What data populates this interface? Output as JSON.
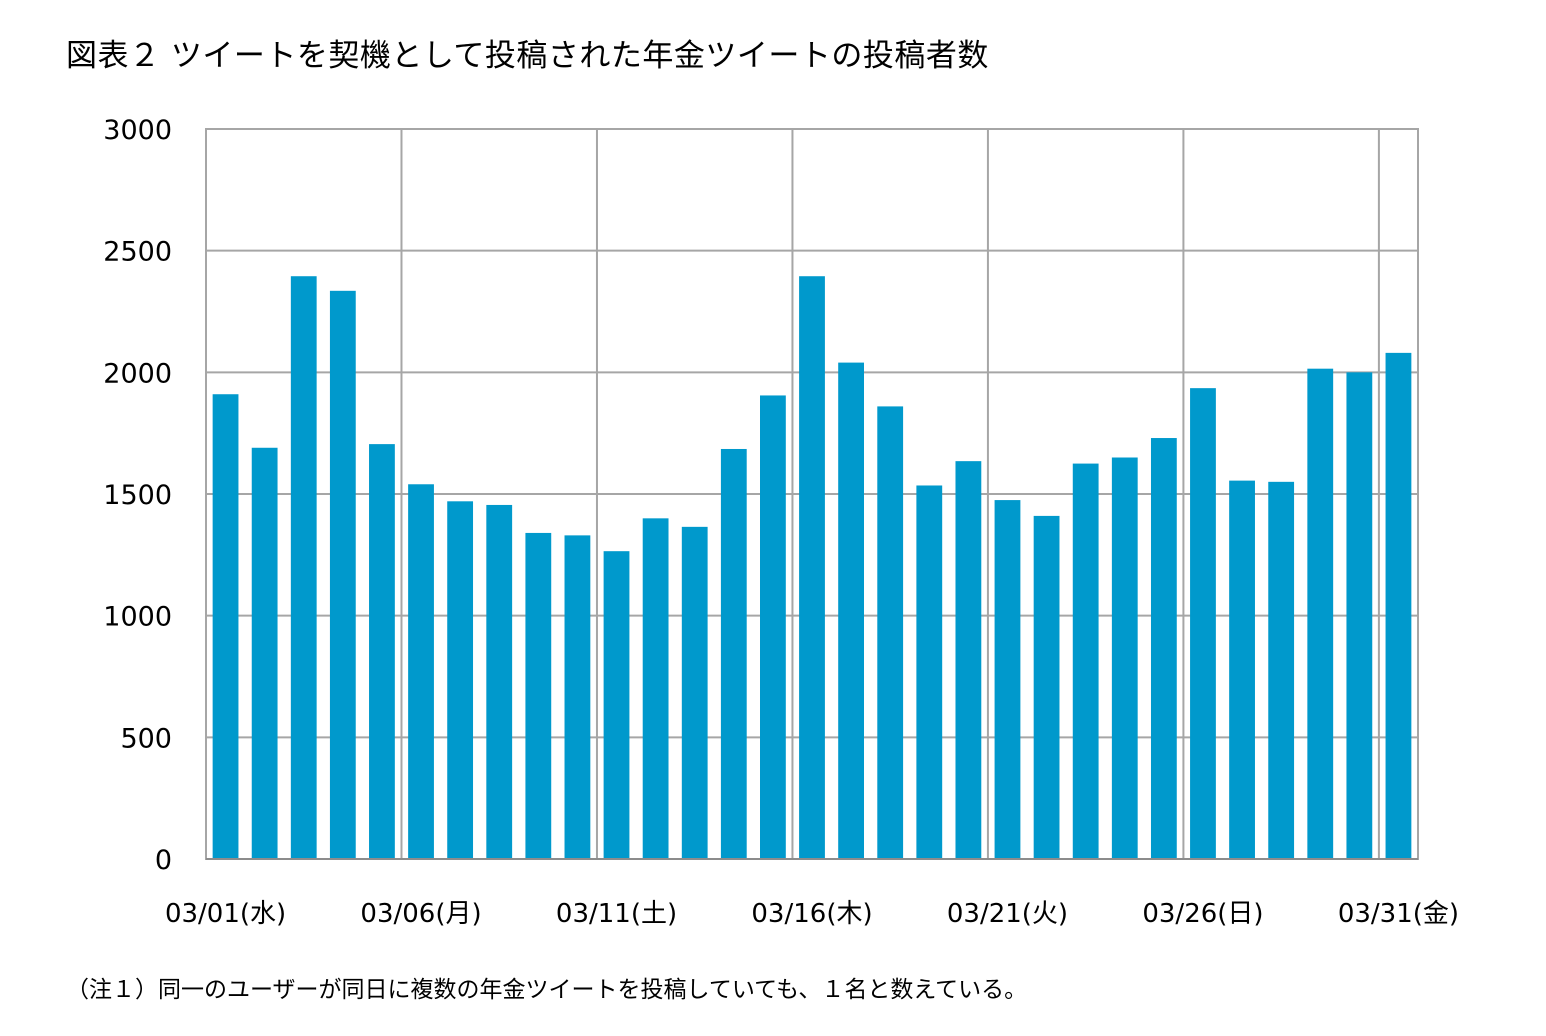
{
  "chart_data": {
    "type": "bar",
    "title": "図表２ ツイートを契機として投稿された年金ツイートの投稿者数",
    "note": "（注１）同一のユーザーが同日に複数の年金ツイートを投稿していても、１名と数えている。",
    "xlabel": "",
    "ylabel": "",
    "ylim": [
      0,
      3000
    ],
    "yticks": [
      "0",
      "500",
      "1000",
      "1500",
      "2000",
      "2500",
      "3000"
    ],
    "xtick_labels": [
      "03/01(水)",
      "03/06(月)",
      "03/11(土)",
      "03/16(木)",
      "03/21(火)",
      "03/26(日)",
      "03/31(金)"
    ],
    "xtick_indices": [
      0,
      5,
      10,
      15,
      20,
      25,
      30
    ],
    "grid": true,
    "bar_color": "#0099CC",
    "categories": [
      "03/01",
      "03/02",
      "03/03",
      "03/04",
      "03/05",
      "03/06",
      "03/07",
      "03/08",
      "03/09",
      "03/10",
      "03/11",
      "03/12",
      "03/13",
      "03/14",
      "03/15",
      "03/16",
      "03/17",
      "03/18",
      "03/19",
      "03/20",
      "03/21",
      "03/22",
      "03/23",
      "03/24",
      "03/25",
      "03/26",
      "03/27",
      "03/28",
      "03/29",
      "03/30",
      "03/31"
    ],
    "values": [
      1910,
      1690,
      2395,
      2335,
      1705,
      1540,
      1470,
      1455,
      1340,
      1330,
      1265,
      1400,
      1365,
      1685,
      1905,
      2395,
      2040,
      1860,
      1535,
      1635,
      1475,
      1410,
      1625,
      1650,
      1730,
      1935,
      1555,
      1550,
      2015,
      2000,
      2080
    ]
  }
}
